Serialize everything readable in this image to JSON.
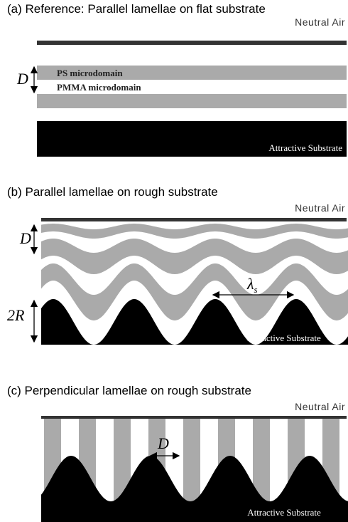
{
  "panels": [
    {
      "title": "(a) Reference: Parallel lamellae on flat substrate",
      "air_label": "Neutral Air",
      "period_label": "D",
      "upper_domain_label": "PS microdomain",
      "lower_domain_label": "PMMA microdomain",
      "substrate_label": "Attractive Substrate"
    },
    {
      "title": "(b) Parallel lamellae on rough substrate",
      "air_label": "Neutral Air",
      "period_label": "D",
      "wavelength_label": "λ",
      "wavelength_subscript": "s",
      "amplitude_label": "2R",
      "substrate_label": "Attractive Substrate"
    },
    {
      "title": "(c) Perpendicular lamellae on rough substrate",
      "air_label": "Neutral Air",
      "period_label": "D",
      "substrate_label": "Attractive Substrate"
    }
  ]
}
